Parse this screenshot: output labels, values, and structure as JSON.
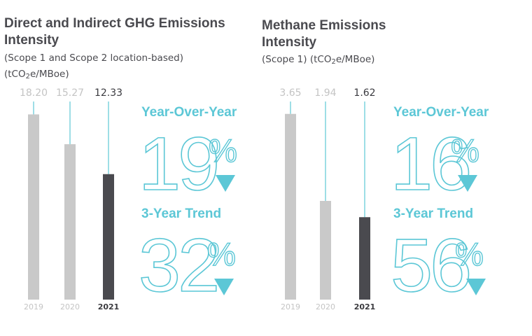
{
  "charts": [
    {
      "title_lines": [
        "Direct and Indirect GHG Emissions",
        "Intensity"
      ],
      "subtitle_line1": "(Scope 1 and Scope 2 location-based)",
      "unit_prefix": "(tCO",
      "unit_sub": "2",
      "unit_suffix": "e/MBoe)",
      "yoy_label": "Year-Over-Year",
      "yoy_value": "19",
      "trend_label": "3-Year Trend",
      "trend_value": "32",
      "percent_sign": "%"
    },
    {
      "title_lines": [
        "Methane Emissions",
        "Intensity"
      ],
      "subtitle_line1": "",
      "unit_prefix": "(Scope 1) (tCO",
      "unit_sub": "2",
      "unit_suffix": "e/MBoe)",
      "yoy_label": "Year-Over-Year",
      "yoy_value": "16",
      "trend_label": "3-Year Trend",
      "trend_value": "56",
      "percent_sign": "%"
    }
  ],
  "chart_data": [
    {
      "type": "bar",
      "title": "Direct and Indirect GHG Emissions Intensity",
      "categories": [
        "2019",
        "2020",
        "2021"
      ],
      "values": [
        18.2,
        15.27,
        12.33
      ],
      "value_labels": [
        "18.20",
        "15.27",
        "12.33"
      ],
      "ylim": [
        0,
        20.5
      ],
      "grid": false,
      "colors": {
        "past_bar": "#c9c9c9",
        "current_bar": "#4a4a4f",
        "past_label": "#c4c4c4",
        "current_label": "#3a3a3f",
        "leader_line": "#5cc7d6"
      },
      "highlight_index": 2
    },
    {
      "type": "bar",
      "title": "Methane Emissions Intensity",
      "categories": [
        "2019",
        "2020",
        "2021"
      ],
      "values": [
        3.65,
        1.94,
        1.62
      ],
      "value_labels": [
        "3.65",
        "1.94",
        "1.62"
      ],
      "ylim": [
        0,
        4.1
      ],
      "grid": false,
      "colors": {
        "past_bar": "#c9c9c9",
        "current_bar": "#4a4a4f",
        "past_label": "#c4c4c4",
        "current_label": "#3a3a3f",
        "leader_line": "#5cc7d6"
      },
      "highlight_index": 2
    }
  ]
}
